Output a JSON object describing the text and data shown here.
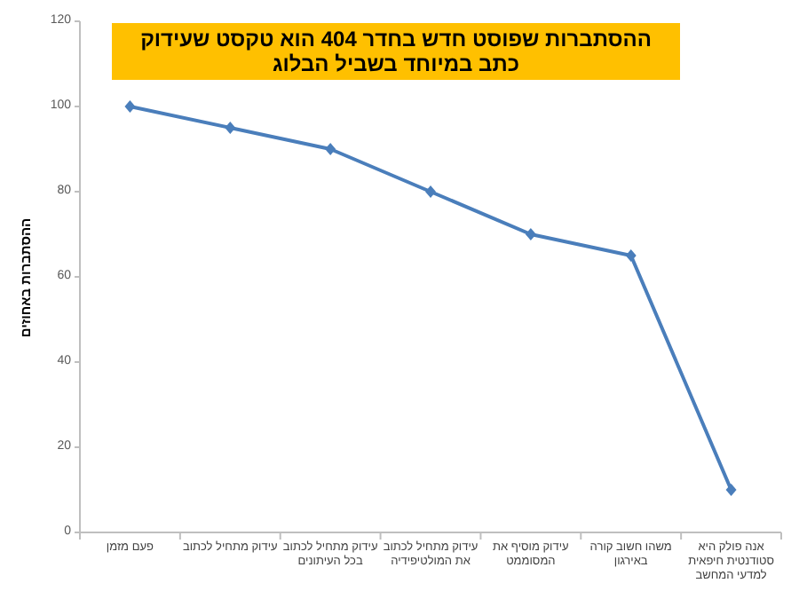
{
  "chart_data": {
    "type": "line",
    "title": "ההסתברות שפוסט חדש בחדר 404 הוא טקסט שעידוק כתב במיוחד בשביל הבלוג",
    "ylabel": "ההסתברות באחוזים",
    "categories": [
      "פעם מזמן",
      "עידוק מתחיל לכתוב",
      "עידוק מתחיל לכתוב בכל העיתונים",
      "עידוק מתחיל לכתוב את המולטיפידיה",
      "עידוק מוסיף את המסוממט",
      "משהו חשוב קורה באירגון",
      "אנה פולק היא סטודנטית חיפאית למדעי המחשב"
    ],
    "values": [
      100,
      95,
      90,
      80,
      70,
      65,
      10
    ],
    "color": "#4a7ebb",
    "marker": "diamond",
    "ylim": [
      0,
      120
    ],
    "yticks": [
      0,
      20,
      40,
      60,
      80,
      100,
      120
    ]
  }
}
